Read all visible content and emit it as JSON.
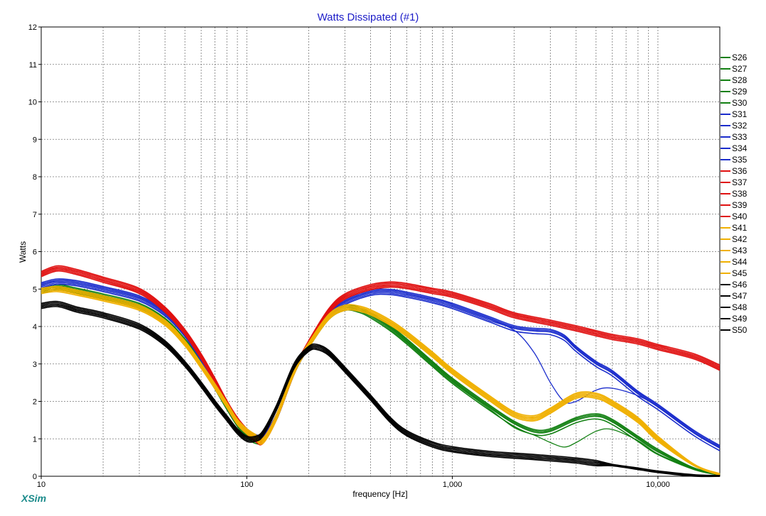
{
  "chart_data": {
    "type": "line",
    "title": "Watts Dissipated (#1)",
    "xlabel": "frequency [Hz]",
    "ylabel": "Watts",
    "xscale": "log",
    "xlim": [
      10,
      20000
    ],
    "ylim": [
      0,
      12
    ],
    "grid": true,
    "legend_placement": "right",
    "x_tick_labels": [
      {
        "x": 10,
        "label": "10"
      },
      {
        "x": 100,
        "label": "100"
      },
      {
        "x": 1000,
        "label": "1,000"
      },
      {
        "x": 10000,
        "label": "10,000"
      }
    ],
    "y_tick_labels": [
      "0",
      "1",
      "2",
      "3",
      "4",
      "5",
      "6",
      "7",
      "8",
      "9",
      "10",
      "11",
      "12"
    ],
    "colors": {
      "green": "#128012",
      "blue": "#1a2ccc",
      "red": "#e01010",
      "yellow": "#f0b000",
      "black": "#000000"
    },
    "groups": [
      {
        "color": "green",
        "names": [
          "S26",
          "S27",
          "S28",
          "S29",
          "S30"
        ],
        "base": [
          [
            10,
            4.95
          ],
          [
            12,
            5.05
          ],
          [
            15,
            4.95
          ],
          [
            20,
            4.8
          ],
          [
            30,
            4.55
          ],
          [
            40,
            4.15
          ],
          [
            50,
            3.6
          ],
          [
            60,
            3.0
          ],
          [
            70,
            2.4
          ],
          [
            80,
            1.85
          ],
          [
            90,
            1.4
          ],
          [
            100,
            1.1
          ],
          [
            110,
            0.95
          ],
          [
            120,
            1.0
          ],
          [
            140,
            1.6
          ],
          [
            170,
            2.8
          ],
          [
            200,
            3.5
          ],
          [
            250,
            4.25
          ],
          [
            300,
            4.5
          ],
          [
            350,
            4.45
          ],
          [
            400,
            4.3
          ],
          [
            500,
            3.95
          ],
          [
            600,
            3.6
          ],
          [
            800,
            3.0
          ],
          [
            1000,
            2.55
          ],
          [
            1500,
            1.85
          ],
          [
            2000,
            1.4
          ],
          [
            2500,
            1.18
          ],
          [
            3000,
            1.2
          ],
          [
            4000,
            1.5
          ],
          [
            5000,
            1.6
          ],
          [
            6000,
            1.45
          ],
          [
            8000,
            1.0
          ],
          [
            10000,
            0.65
          ],
          [
            15000,
            0.2
          ],
          [
            20000,
            0.05
          ]
        ],
        "variant": [
          [
            2000,
            1.3
          ],
          [
            2500,
            1.1
          ],
          [
            3000,
            0.9
          ],
          [
            3500,
            0.78
          ],
          [
            4000,
            0.9
          ],
          [
            5000,
            1.2
          ],
          [
            6000,
            1.25
          ],
          [
            8000,
            0.95
          ],
          [
            10000,
            0.6
          ],
          [
            15000,
            0.2
          ],
          [
            20000,
            0.05
          ]
        ]
      },
      {
        "color": "blue",
        "names": [
          "S31",
          "S32",
          "S33",
          "S34",
          "S35"
        ],
        "base": [
          [
            10,
            5.1
          ],
          [
            12,
            5.2
          ],
          [
            15,
            5.15
          ],
          [
            20,
            5.0
          ],
          [
            30,
            4.75
          ],
          [
            40,
            4.35
          ],
          [
            50,
            3.8
          ],
          [
            60,
            3.15
          ],
          [
            70,
            2.5
          ],
          [
            80,
            1.9
          ],
          [
            90,
            1.45
          ],
          [
            100,
            1.2
          ],
          [
            110,
            1.05
          ],
          [
            120,
            1.05
          ],
          [
            140,
            1.6
          ],
          [
            170,
            2.8
          ],
          [
            200,
            3.5
          ],
          [
            250,
            4.3
          ],
          [
            300,
            4.65
          ],
          [
            400,
            4.9
          ],
          [
            500,
            4.92
          ],
          [
            600,
            4.85
          ],
          [
            800,
            4.7
          ],
          [
            1000,
            4.55
          ],
          [
            1500,
            4.2
          ],
          [
            2000,
            3.95
          ],
          [
            2500,
            3.88
          ],
          [
            3000,
            3.85
          ],
          [
            3500,
            3.7
          ],
          [
            4000,
            3.4
          ],
          [
            5000,
            3.0
          ],
          [
            6000,
            2.75
          ],
          [
            8000,
            2.2
          ],
          [
            10000,
            1.85
          ],
          [
            15000,
            1.15
          ],
          [
            20000,
            0.75
          ]
        ],
        "variant": [
          [
            2000,
            3.9
          ],
          [
            2500,
            3.3
          ],
          [
            3000,
            2.5
          ],
          [
            3500,
            2.0
          ],
          [
            4000,
            2.0
          ],
          [
            5000,
            2.3
          ],
          [
            6000,
            2.35
          ],
          [
            8000,
            2.15
          ],
          [
            10000,
            1.85
          ],
          [
            15000,
            1.15
          ],
          [
            20000,
            0.75
          ]
        ]
      },
      {
        "color": "red",
        "names": [
          "S36",
          "S37",
          "S38",
          "S39",
          "S40"
        ],
        "base": [
          [
            10,
            5.4
          ],
          [
            12,
            5.55
          ],
          [
            15,
            5.45
          ],
          [
            20,
            5.25
          ],
          [
            30,
            4.95
          ],
          [
            40,
            4.45
          ],
          [
            50,
            3.85
          ],
          [
            60,
            3.2
          ],
          [
            70,
            2.55
          ],
          [
            80,
            1.95
          ],
          [
            90,
            1.5
          ],
          [
            100,
            1.2
          ],
          [
            110,
            1.0
          ],
          [
            120,
            0.95
          ],
          [
            140,
            1.6
          ],
          [
            170,
            2.8
          ],
          [
            200,
            3.55
          ],
          [
            250,
            4.4
          ],
          [
            300,
            4.8
          ],
          [
            400,
            5.05
          ],
          [
            500,
            5.12
          ],
          [
            600,
            5.08
          ],
          [
            800,
            4.95
          ],
          [
            1000,
            4.85
          ],
          [
            1500,
            4.55
          ],
          [
            2000,
            4.3
          ],
          [
            3000,
            4.1
          ],
          [
            4000,
            3.95
          ],
          [
            5000,
            3.82
          ],
          [
            6000,
            3.72
          ],
          [
            8000,
            3.6
          ],
          [
            10000,
            3.45
          ],
          [
            15000,
            3.2
          ],
          [
            20000,
            2.9
          ]
        ]
      },
      {
        "color": "yellow",
        "names": [
          "S41",
          "S42",
          "S43",
          "S44",
          "S45"
        ],
        "base": [
          [
            10,
            4.95
          ],
          [
            12,
            5.0
          ],
          [
            15,
            4.9
          ],
          [
            20,
            4.75
          ],
          [
            30,
            4.5
          ],
          [
            40,
            4.1
          ],
          [
            50,
            3.55
          ],
          [
            60,
            2.95
          ],
          [
            70,
            2.4
          ],
          [
            80,
            1.9
          ],
          [
            90,
            1.45
          ],
          [
            100,
            1.2
          ],
          [
            110,
            1.05
          ],
          [
            120,
            0.95
          ],
          [
            140,
            1.6
          ],
          [
            170,
            2.8
          ],
          [
            200,
            3.5
          ],
          [
            250,
            4.25
          ],
          [
            300,
            4.5
          ],
          [
            350,
            4.48
          ],
          [
            400,
            4.38
          ],
          [
            500,
            4.1
          ],
          [
            600,
            3.8
          ],
          [
            800,
            3.25
          ],
          [
            1000,
            2.8
          ],
          [
            1500,
            2.1
          ],
          [
            2000,
            1.65
          ],
          [
            2500,
            1.55
          ],
          [
            3000,
            1.75
          ],
          [
            4000,
            2.15
          ],
          [
            5000,
            2.15
          ],
          [
            6000,
            1.95
          ],
          [
            8000,
            1.5
          ],
          [
            10000,
            1.0
          ],
          [
            15000,
            0.3
          ],
          [
            20000,
            0.05
          ]
        ]
      },
      {
        "color": "black",
        "names": [
          "S46",
          "S47",
          "S48",
          "S49",
          "S50"
        ],
        "base": [
          [
            10,
            4.55
          ],
          [
            12,
            4.6
          ],
          [
            15,
            4.45
          ],
          [
            20,
            4.3
          ],
          [
            30,
            4.0
          ],
          [
            40,
            3.55
          ],
          [
            50,
            3.0
          ],
          [
            60,
            2.45
          ],
          [
            70,
            1.95
          ],
          [
            80,
            1.55
          ],
          [
            90,
            1.2
          ],
          [
            100,
            1.0
          ],
          [
            110,
            1.0
          ],
          [
            120,
            1.15
          ],
          [
            140,
            1.85
          ],
          [
            170,
            2.95
          ],
          [
            200,
            3.4
          ],
          [
            220,
            3.45
          ],
          [
            250,
            3.3
          ],
          [
            300,
            2.85
          ],
          [
            400,
            2.1
          ],
          [
            500,
            1.5
          ],
          [
            600,
            1.15
          ],
          [
            800,
            0.85
          ],
          [
            1000,
            0.72
          ],
          [
            1500,
            0.6
          ],
          [
            2000,
            0.55
          ],
          [
            3000,
            0.48
          ],
          [
            4000,
            0.42
          ],
          [
            5000,
            0.35
          ],
          [
            6000,
            0.3
          ],
          [
            8000,
            0.2
          ],
          [
            10000,
            0.12
          ],
          [
            15000,
            0.02
          ],
          [
            20000,
            0.0
          ]
        ]
      }
    ]
  },
  "brand": "XSim"
}
